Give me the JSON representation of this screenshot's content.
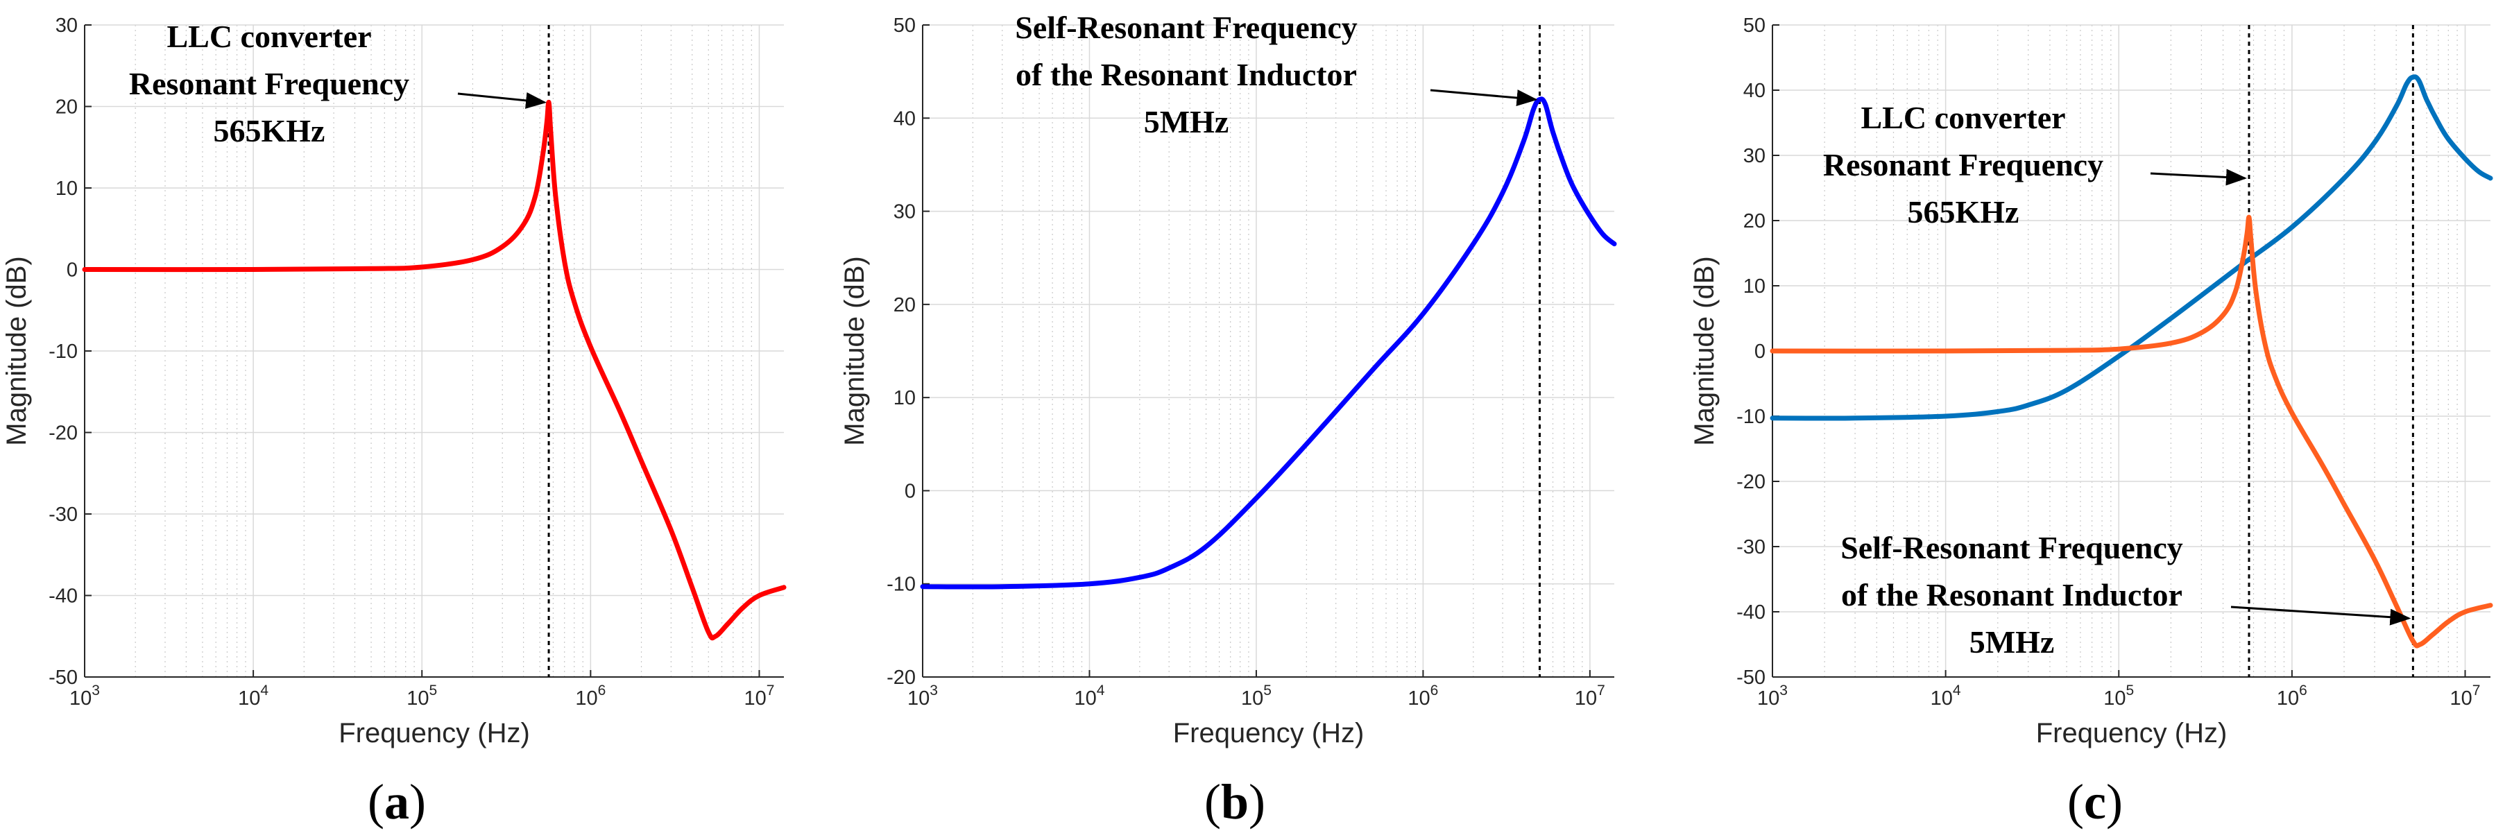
{
  "chart_data": [
    {
      "type": "line",
      "panel_label": "(a)",
      "xlabel": "Frequency  (Hz)",
      "ylabel": "Magnitude (dB)",
      "xscale": "log",
      "xlim": [
        1000,
        14000000
      ],
      "ylim": [
        -50,
        30
      ],
      "yticks": [
        -50,
        -40,
        -30,
        -20,
        -10,
        0,
        10,
        20,
        30
      ],
      "xtick_exponents": [
        3,
        4,
        5,
        6,
        7
      ],
      "grid": true,
      "series": [
        {
          "name": "LLC converter",
          "color": "#ff0000",
          "x": [
            1000,
            10000,
            50000,
            100000,
            200000,
            300000,
            400000,
            470000,
            520000,
            550000,
            565000,
            580000,
            620000,
            700000,
            800000,
            1000000,
            1500000,
            2000000,
            3000000,
            4000000,
            5000000,
            5500000,
            6500000,
            8000000,
            10000000,
            14000000
          ],
          "y": [
            0,
            0,
            0.1,
            0.3,
            1.2,
            2.8,
            5.5,
            9,
            14,
            18,
            20.5,
            17,
            9,
            1,
            -4,
            -9.5,
            -17.5,
            -23.5,
            -32,
            -39,
            -44.5,
            -45,
            -43.5,
            -41.5,
            -40,
            -39
          ]
        }
      ],
      "vlines": [
        565000
      ],
      "annotations": [
        {
          "lines": [
            "LLC converter",
            "Resonant Frequency",
            "565KHz"
          ],
          "arrow_to": {
            "x": 565000,
            "y": 20.5
          }
        }
      ]
    },
    {
      "type": "line",
      "panel_label": "(b)",
      "xlabel": "Frequency  (Hz)",
      "ylabel": "Magnitude (dB)",
      "xscale": "log",
      "xlim": [
        1000,
        14000000
      ],
      "ylim": [
        -20,
        50
      ],
      "yticks": [
        -20,
        -10,
        0,
        10,
        20,
        30,
        40,
        50
      ],
      "xtick_exponents": [
        3,
        4,
        5,
        6,
        7
      ],
      "grid": true,
      "series": [
        {
          "name": "Resonant Inductor",
          "color": "#0000ff",
          "x": [
            1000,
            3000,
            10000,
            20000,
            30000,
            50000,
            100000,
            200000,
            500000,
            1000000,
            2000000,
            3000000,
            4000000,
            4600000,
            5000000,
            5400000,
            6000000,
            7000000,
            8000000,
            10000000,
            12000000,
            14000000
          ],
          "y": [
            -10.3,
            -10.3,
            -10,
            -9.3,
            -8.3,
            -6,
            -0.8,
            5,
            13,
            19,
            26.5,
            32,
            37.5,
            41,
            42,
            41.5,
            38.5,
            35,
            32.5,
            29.5,
            27.5,
            26.5
          ]
        }
      ],
      "vlines": [
        5000000
      ],
      "annotations": [
        {
          "lines": [
            "Self-Resonant Frequency",
            "of the Resonant Inductor",
            "5MHz"
          ],
          "arrow_to": {
            "x": 5000000,
            "y": 42
          }
        }
      ]
    },
    {
      "type": "line",
      "panel_label": "(c)",
      "xlabel": "Frequency  (Hz)",
      "ylabel": "Magnitude (dB)",
      "xscale": "log",
      "xlim": [
        1000,
        14000000
      ],
      "ylim": [
        -50,
        50
      ],
      "yticks": [
        -50,
        -40,
        -30,
        -20,
        -10,
        0,
        10,
        20,
        30,
        40,
        50
      ],
      "xtick_exponents": [
        3,
        4,
        5,
        6,
        7
      ],
      "grid": true,
      "series": [
        {
          "name": "Resonant Inductor",
          "color": "#0072bd",
          "x": [
            1000,
            3000,
            10000,
            20000,
            30000,
            50000,
            100000,
            200000,
            500000,
            1000000,
            2000000,
            3000000,
            4000000,
            4600000,
            5000000,
            5400000,
            6000000,
            7000000,
            8000000,
            10000000,
            12000000,
            14000000
          ],
          "y": [
            -10.3,
            -10.3,
            -10,
            -9.3,
            -8.3,
            -6,
            -0.8,
            5,
            13,
            19,
            26.5,
            32,
            37.5,
            41,
            42,
            41.5,
            38.5,
            35,
            32.5,
            29.5,
            27.5,
            26.5
          ]
        },
        {
          "name": "LLC converter",
          "color": "#ff5f1f",
          "x": [
            1000,
            10000,
            50000,
            100000,
            200000,
            300000,
            400000,
            470000,
            520000,
            550000,
            565000,
            580000,
            620000,
            700000,
            800000,
            1000000,
            1500000,
            2000000,
            3000000,
            4000000,
            5000000,
            5500000,
            6500000,
            8000000,
            10000000,
            14000000
          ],
          "y": [
            0,
            0,
            0.1,
            0.3,
            1.2,
            2.8,
            5.5,
            9,
            14,
            18,
            20.5,
            17,
            9,
            1,
            -4,
            -9.5,
            -17.5,
            -23.5,
            -32,
            -39,
            -44.5,
            -45,
            -43.5,
            -41.5,
            -40,
            -39
          ]
        }
      ],
      "vlines": [
        565000,
        5000000
      ],
      "annotations": [
        {
          "lines": [
            "LLC converter",
            "Resonant Frequency",
            "565KHz"
          ],
          "arrow_to": {
            "x": 565000,
            "y": 26.5
          }
        },
        {
          "lines": [
            "Self-Resonant Frequency",
            "of the Resonant Inductor",
            "5MHz"
          ],
          "arrow_to": {
            "x": 5000000,
            "y": -41
          }
        }
      ]
    }
  ]
}
